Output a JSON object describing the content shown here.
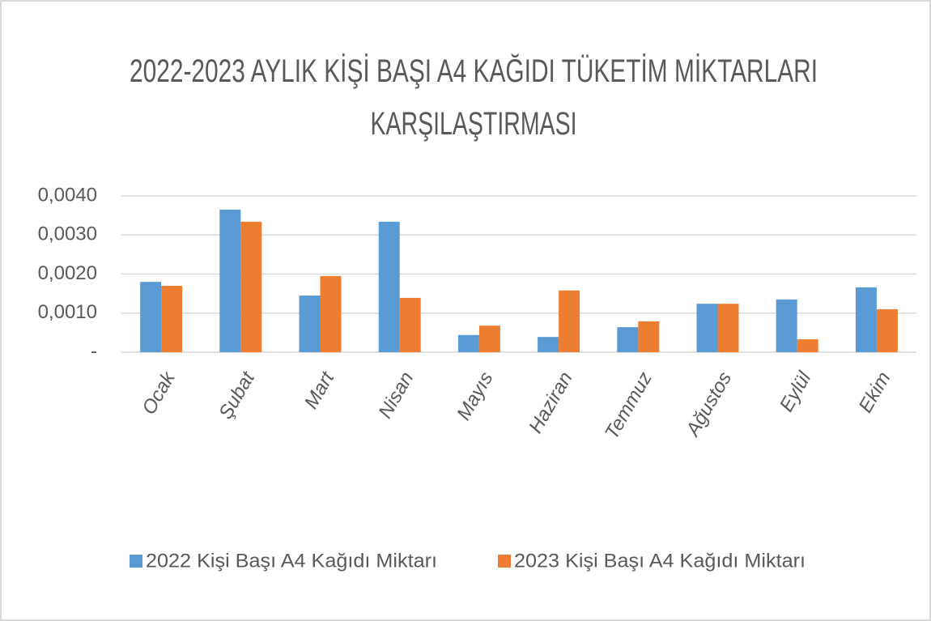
{
  "chart_data": {
    "type": "bar",
    "title": "2022-2023 AYLIK KİŞİ BAŞI A4 KAĞIDI TÜKETİM MİKTARLARI KARŞILAŞTIRMASI",
    "categories": [
      "Ocak",
      "Şubat",
      "Mart",
      "Nisan",
      "Mayıs",
      "Haziran",
      "Temmuz",
      "Ağustos",
      "Eylül",
      "Ekim"
    ],
    "series": [
      {
        "name": "2022 Kişi Başı A4 Kağıdı Miktarı",
        "color": "#5b9bd5",
        "values": [
          0.0018,
          0.00365,
          0.00145,
          0.00334,
          0.00044,
          0.00039,
          0.00064,
          0.00124,
          0.00135,
          0.00166
        ]
      },
      {
        "name": "2023 Kişi Başı A4 Kağıdı Miktarı",
        "color": "#ed7d31",
        "values": [
          0.0017,
          0.00334,
          0.00195,
          0.00139,
          0.00068,
          0.00158,
          0.00079,
          0.00124,
          0.00033,
          0.0011
        ]
      }
    ],
    "ylim": [
      0,
      0.004
    ],
    "yticks": [
      {
        "value": 0,
        "label": "-"
      },
      {
        "value": 0.001,
        "label": "0,0010"
      },
      {
        "value": 0.002,
        "label": "0,0020"
      },
      {
        "value": 0.003,
        "label": "0,0030"
      },
      {
        "value": 0.004,
        "label": "0,0040"
      }
    ],
    "grid": true,
    "legend": "bottom"
  }
}
